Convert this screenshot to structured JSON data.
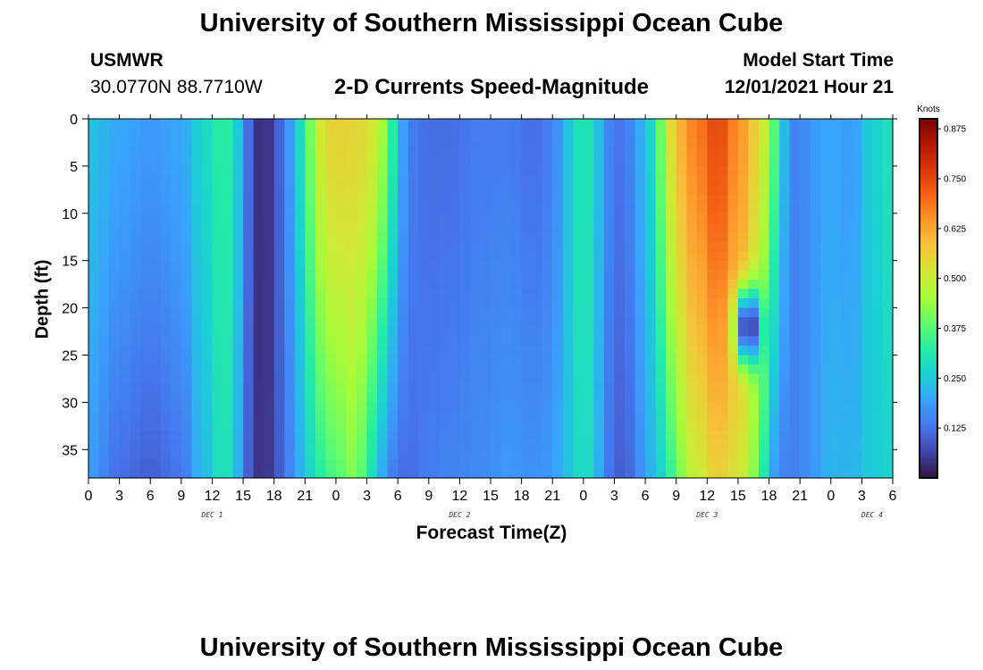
{
  "header": {
    "title": "University of Southern Mississippi Ocean Cube",
    "station": "USMWR",
    "coords": "30.0770N  88.7710W",
    "subtitle": "2-D Currents Speed-Magnitude",
    "model_label": "Model Start Time",
    "model_time": "12/01/2021 Hour 21"
  },
  "footer": {
    "title": "University of Southern Mississippi Ocean Cube"
  },
  "colors": {
    "colormap": [
      "#30123b",
      "#4145ab",
      "#4675ed",
      "#39a2fc",
      "#1bcfd4",
      "#24eca6",
      "#61fc6c",
      "#a4fc3b",
      "#d1e834",
      "#f3c63a",
      "#fe9b2d",
      "#f36315",
      "#d93806",
      "#b11901",
      "#7a0402"
    ]
  },
  "chart_data": {
    "type": "heatmap",
    "title": "2-D Currents Speed-Magnitude",
    "xlabel": "Forecast Time(Z)",
    "ylabel": "Depth (ft)",
    "colorbar_label": "Knots",
    "value_range": [
      0.0,
      0.9
    ],
    "x_range_hours_from_dec1_00z": [
      0,
      78
    ],
    "y_range_ft": [
      0,
      38
    ],
    "x_tick_labels": [
      "0",
      "3",
      "6",
      "9",
      "12",
      "15",
      "18",
      "21",
      "0",
      "3",
      "6",
      "9",
      "12",
      "15",
      "18",
      "21",
      "0",
      "3",
      "6",
      "9",
      "12",
      "15",
      "18",
      "21",
      "0",
      "3",
      "6"
    ],
    "x_tick_hours": [
      0,
      3,
      6,
      9,
      12,
      15,
      18,
      21,
      24,
      27,
      30,
      33,
      36,
      39,
      42,
      45,
      48,
      51,
      54,
      57,
      60,
      63,
      66,
      69,
      72,
      75,
      78
    ],
    "day_labels": [
      {
        "label": "DEC 1",
        "hour": 12
      },
      {
        "label": "DEC 2",
        "hour": 36
      },
      {
        "label": "DEC 3",
        "hour": 60
      },
      {
        "label": "DEC 4",
        "hour": 76
      }
    ],
    "y_tick_labels": [
      "0",
      "5",
      "10",
      "15",
      "20",
      "25",
      "30",
      "35"
    ],
    "y_tick_values": [
      0,
      5,
      10,
      15,
      20,
      25,
      30,
      35
    ],
    "colorbar_ticks": [
      "0.125",
      "0.250",
      "0.375",
      "0.500",
      "0.625",
      "0.750",
      "0.875"
    ],
    "colorbar_tick_values": [
      0.125,
      0.25,
      0.375,
      0.5,
      0.625,
      0.75,
      0.875
    ],
    "features": [
      {
        "hour": 0,
        "surface": 0.24,
        "bottom": 0.18
      },
      {
        "hour": 3,
        "surface": 0.2,
        "bottom": 0.12
      },
      {
        "hour": 6,
        "surface": 0.18,
        "bottom": 0.1
      },
      {
        "hour": 9,
        "surface": 0.2,
        "bottom": 0.13
      },
      {
        "hour": 11,
        "surface": 0.27,
        "bottom": 0.22
      },
      {
        "hour": 13,
        "surface": 0.33,
        "bottom": 0.3
      },
      {
        "hour": 14,
        "surface": 0.32,
        "bottom": 0.29
      },
      {
        "hour": 15,
        "surface": 0.18,
        "bottom": 0.14
      },
      {
        "hour": 16,
        "surface": 0.06,
        "bottom": 0.06
      },
      {
        "hour": 17,
        "surface": 0.02,
        "bottom": 0.03
      },
      {
        "hour": 18,
        "surface": 0.07,
        "bottom": 0.07
      },
      {
        "hour": 19,
        "surface": 0.14,
        "bottom": 0.12
      },
      {
        "hour": 20,
        "surface": 0.22,
        "bottom": 0.18
      },
      {
        "hour": 21,
        "surface": 0.34,
        "bottom": 0.24
      },
      {
        "hour": 22,
        "surface": 0.47,
        "bottom": 0.3
      },
      {
        "hour": 23,
        "surface": 0.55,
        "bottom": 0.34
      },
      {
        "hour": 24,
        "surface": 0.56,
        "bottom": 0.37
      },
      {
        "hour": 26,
        "surface": 0.55,
        "bottom": 0.42
      },
      {
        "hour": 27,
        "surface": 0.54,
        "bottom": 0.33
      },
      {
        "hour": 28,
        "surface": 0.5,
        "bottom": 0.24
      },
      {
        "hour": 29,
        "surface": 0.4,
        "bottom": 0.16
      },
      {
        "hour": 30,
        "surface": 0.24,
        "bottom": 0.12
      },
      {
        "hour": 31,
        "surface": 0.14,
        "bottom": 0.12
      },
      {
        "hour": 33,
        "surface": 0.12,
        "bottom": 0.14
      },
      {
        "hour": 35,
        "surface": 0.12,
        "bottom": 0.15
      },
      {
        "hour": 38,
        "surface": 0.14,
        "bottom": 0.16
      },
      {
        "hour": 41,
        "surface": 0.14,
        "bottom": 0.18
      },
      {
        "hour": 43,
        "surface": 0.12,
        "bottom": 0.17
      },
      {
        "hour": 45,
        "surface": 0.14,
        "bottom": 0.18
      },
      {
        "hour": 46,
        "surface": 0.2,
        "bottom": 0.22
      },
      {
        "hour": 47,
        "surface": 0.28,
        "bottom": 0.26
      },
      {
        "hour": 48,
        "surface": 0.32,
        "bottom": 0.3
      },
      {
        "hour": 49,
        "surface": 0.28,
        "bottom": 0.26
      },
      {
        "hour": 50,
        "surface": 0.18,
        "bottom": 0.16
      },
      {
        "hour": 51,
        "surface": 0.12,
        "bottom": 0.1
      },
      {
        "hour": 52,
        "surface": 0.14,
        "bottom": 0.1
      },
      {
        "hour": 54,
        "surface": 0.22,
        "bottom": 0.18
      },
      {
        "hour": 55,
        "surface": 0.32,
        "bottom": 0.25
      },
      {
        "hour": 56,
        "surface": 0.48,
        "bottom": 0.28
      },
      {
        "hour": 57,
        "surface": 0.6,
        "bottom": 0.4
      },
      {
        "hour": 59,
        "surface": 0.68,
        "bottom": 0.5
      },
      {
        "hour": 61,
        "surface": 0.75,
        "bottom": 0.56
      },
      {
        "hour": 63,
        "surface": 0.66,
        "bottom": 0.52
      },
      {
        "hour": 65,
        "surface": 0.55,
        "bottom": 0.4
      },
      {
        "hour": 66,
        "surface": 0.45,
        "bottom": 0.22
      },
      {
        "hour": 67,
        "surface": 0.3,
        "bottom": 0.15
      },
      {
        "hour": 68,
        "surface": 0.16,
        "bottom": 0.14
      },
      {
        "hour": 69,
        "surface": 0.14,
        "bottom": 0.15
      },
      {
        "hour": 70,
        "surface": 0.18,
        "bottom": 0.17
      },
      {
        "hour": 72,
        "surface": 0.2,
        "bottom": 0.22
      },
      {
        "hour": 74,
        "surface": 0.18,
        "bottom": 0.22
      },
      {
        "hour": 76,
        "surface": 0.26,
        "bottom": 0.25
      },
      {
        "hour": 78,
        "surface": 0.3,
        "bottom": 0.27
      }
    ],
    "anomalies": [
      {
        "hour": 64,
        "depth_ft": 22,
        "value": 0.0,
        "hour_spread": 1.2,
        "depth_spread": 4.0
      }
    ]
  }
}
